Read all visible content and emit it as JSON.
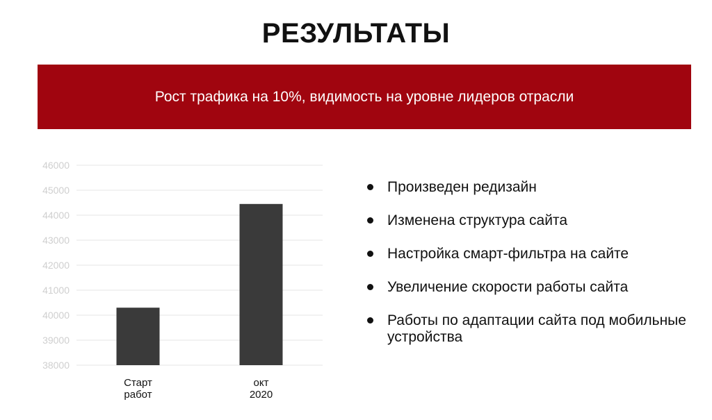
{
  "page": {
    "title": "РЕЗУЛЬТАТЫ",
    "banner_text": "Рост трафика на 10%, видимость на уровне лидеров отрасли"
  },
  "colors": {
    "banner": "#a0050f",
    "bar": "#3a3a3a",
    "grid": "#e4e4e4",
    "tick_text": "#cfcfcf",
    "text": "#111111"
  },
  "results": {
    "icon": "bullet-dot-icon",
    "items": [
      "Произведен редизайн",
      "Изменена структура сайта",
      "Настройка смарт-фильтра на сайте",
      "Увеличение скорости работы сайта",
      "Работы по адаптации сайта под мобильные устройства"
    ]
  },
  "chart_data": {
    "type": "bar",
    "categories": [
      "Старт работ",
      "окт 2020"
    ],
    "category_lines": [
      [
        "Старт",
        "работ"
      ],
      [
        "окт",
        "2020"
      ]
    ],
    "values": [
      40300,
      44450
    ],
    "ylim": [
      38000,
      46000
    ],
    "yticks": [
      "38000",
      "39000",
      "40000",
      "41000",
      "42000",
      "43000",
      "44000",
      "45000",
      "46000"
    ],
    "grid": true,
    "title": "",
    "xlabel": "",
    "ylabel": ""
  }
}
